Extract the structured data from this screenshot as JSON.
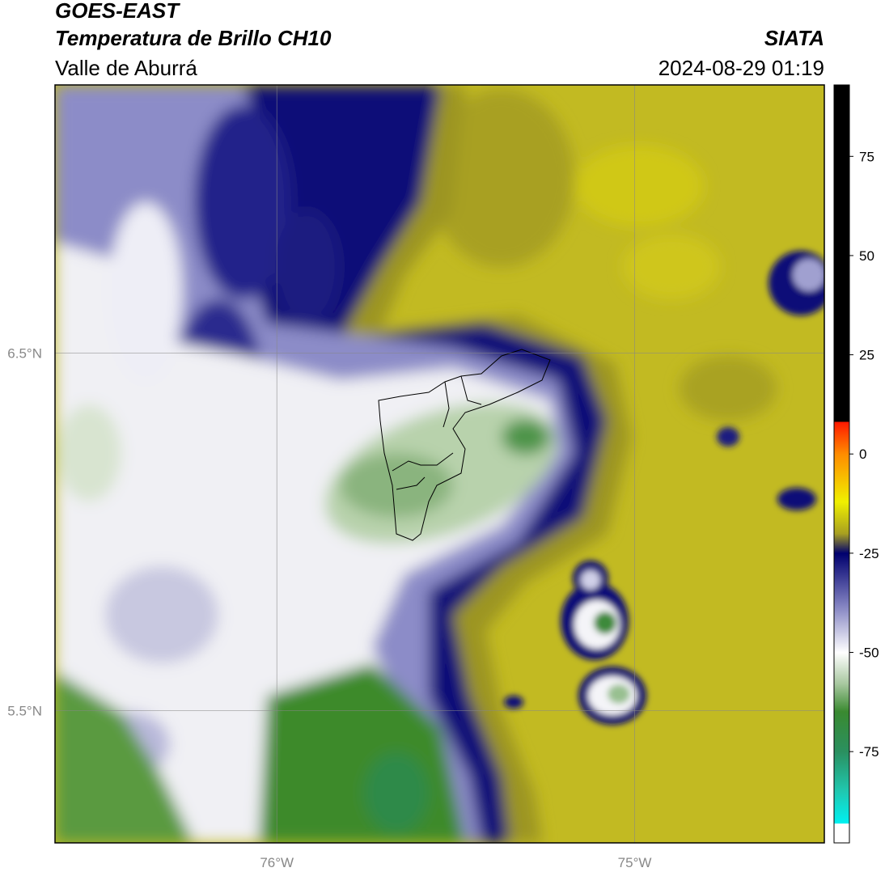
{
  "header": {
    "title": "GOES-EAST",
    "subtitle": "Temperatura de Brillo CH10",
    "region": "Valle de Aburrá",
    "source": "SIATA",
    "timestamp": "2024-08-29 01:19"
  },
  "map": {
    "xlim": [
      -76.62,
      -74.47
    ],
    "ylim": [
      5.13,
      7.25
    ],
    "xticks": [
      {
        "value": -76,
        "label": "76°W"
      },
      {
        "value": -75,
        "label": "75°W"
      }
    ],
    "yticks": [
      {
        "value": 5.5,
        "label": "5.5°N"
      },
      {
        "value": 6.5,
        "label": "6.5°N"
      }
    ],
    "grid": true
  },
  "colorbar": {
    "lim": [
      -98,
      93
    ],
    "ticks": [
      -75,
      -50,
      -25,
      0,
      25,
      50,
      75
    ]
  }
}
